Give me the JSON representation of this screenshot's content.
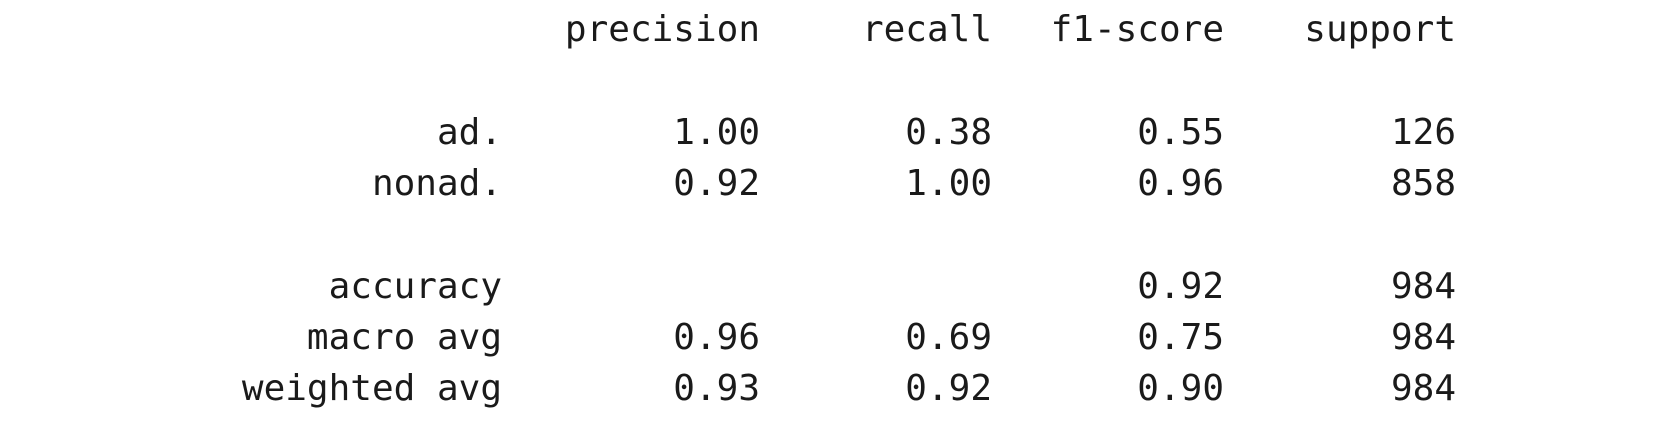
{
  "report": {
    "headers": {
      "precision": "precision",
      "recall": "recall",
      "f1": "f1-score",
      "support": "support"
    },
    "rows": [
      {
        "label": "ad.",
        "precision": "1.00",
        "recall": "0.38",
        "f1": "0.55",
        "support": "126"
      },
      {
        "label": "nonad.",
        "precision": "0.92",
        "recall": "1.00",
        "f1": "0.96",
        "support": "858"
      },
      {
        "label": "accuracy",
        "precision": "",
        "recall": "",
        "f1": "0.92",
        "support": "984"
      },
      {
        "label": "macro avg",
        "precision": "0.96",
        "recall": "0.69",
        "f1": "0.75",
        "support": "984"
      },
      {
        "label": "weighted avg",
        "precision": "0.93",
        "recall": "0.92",
        "f1": "0.90",
        "support": "984"
      }
    ]
  }
}
